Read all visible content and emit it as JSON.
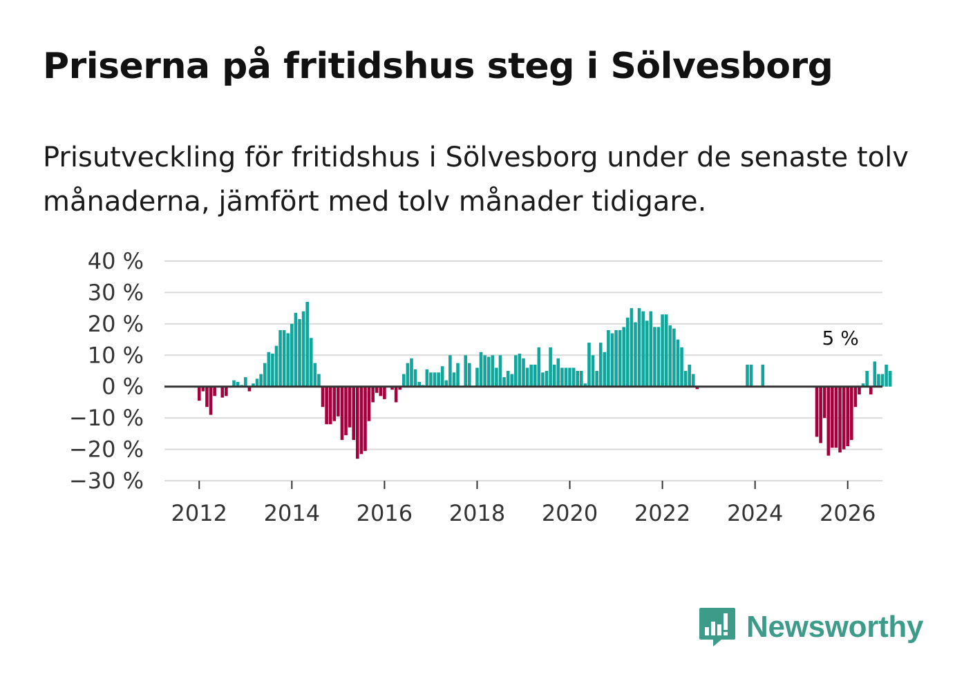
{
  "title": "Priserna på fritidshus steg i Sölvesborg",
  "subtitle": "Prisutveckling för fritidshus i Sölvesborg under de senaste tolv månaderna, jämfört med tolv månader tidigare.",
  "brand": {
    "name": "Newsworthy",
    "color": "#3d9b8a"
  },
  "colors": {
    "positive": "#12a59b",
    "negative": "#a3003d",
    "grid": "#d9d9d9",
    "zero_line": "#333333"
  },
  "chart_data": {
    "type": "bar",
    "title": "Priserna på fritidshus steg i Sölvesborg",
    "xlabel": "",
    "ylabel": "",
    "ylim": [
      -30,
      40
    ],
    "xlim": [
      2011.25,
      2026.75
    ],
    "y_ticks": [
      40,
      30,
      20,
      10,
      0,
      -10,
      -20,
      -30
    ],
    "y_tick_labels": [
      "40 %",
      "30 %",
      "20 %",
      "10 %",
      "0 %",
      "−10 %",
      "−20 %",
      "−30 %"
    ],
    "x_ticks": [
      2012,
      2014,
      2016,
      2018,
      2020,
      2022,
      2024,
      2026
    ],
    "x_tick_labels": [
      "2012",
      "2014",
      "2016",
      "2018",
      "2020",
      "2022",
      "2024",
      "2026"
    ],
    "annotation": {
      "label": "5 %",
      "x": 2025.917,
      "y": 5
    },
    "start": {
      "year": 2012,
      "month": 1
    },
    "values": [
      -4.5,
      -1.5,
      -6.5,
      -9,
      -3,
      null,
      -3.5,
      -3,
      null,
      2,
      1.5,
      0.5,
      3,
      -1.5,
      1,
      2.5,
      4,
      7.5,
      11,
      10.5,
      13,
      18,
      18,
      17,
      20,
      23.5,
      21.5,
      24,
      27,
      15.5,
      7.5,
      4,
      -6.5,
      -12,
      -12,
      -11,
      -9.5,
      -17,
      -15.5,
      -13,
      -17,
      -23,
      -21.5,
      -20.5,
      -11,
      -5,
      -2,
      -3,
      -4,
      null,
      -1,
      -5,
      -1,
      4,
      7.5,
      9,
      5.5,
      1.5,
      0.5,
      5.5,
      4.5,
      4.5,
      4.5,
      6.5,
      2,
      10,
      4.5,
      7.5,
      null,
      10,
      7.5,
      null,
      6,
      11,
      10,
      9.5,
      10,
      6,
      10,
      3,
      5,
      4,
      10,
      10.5,
      9,
      6,
      7,
      7,
      12.5,
      4.5,
      5,
      12.5,
      7,
      9,
      6,
      6,
      6,
      6,
      5,
      5,
      1,
      14,
      10,
      5,
      14,
      11,
      18,
      17,
      18,
      18,
      19,
      22,
      25,
      20.5,
      25,
      24,
      21,
      24,
      19,
      19,
      23,
      23,
      19.5,
      18.5,
      15,
      12.5,
      5,
      7,
      4,
      -0.8,
      null,
      null,
      null,
      null,
      null,
      null,
      null,
      null,
      null,
      null,
      null,
      null,
      7,
      7,
      null,
      null,
      7,
      null,
      null,
      null,
      null,
      null,
      null,
      null,
      null,
      null,
      null,
      null,
      null,
      null,
      -16,
      -18,
      -10,
      -22,
      -19.5,
      -19.5,
      -21,
      -20,
      -19,
      -17,
      -6.5,
      -2.5,
      1,
      5,
      -2.5,
      8,
      4,
      4,
      7,
      5
    ]
  }
}
